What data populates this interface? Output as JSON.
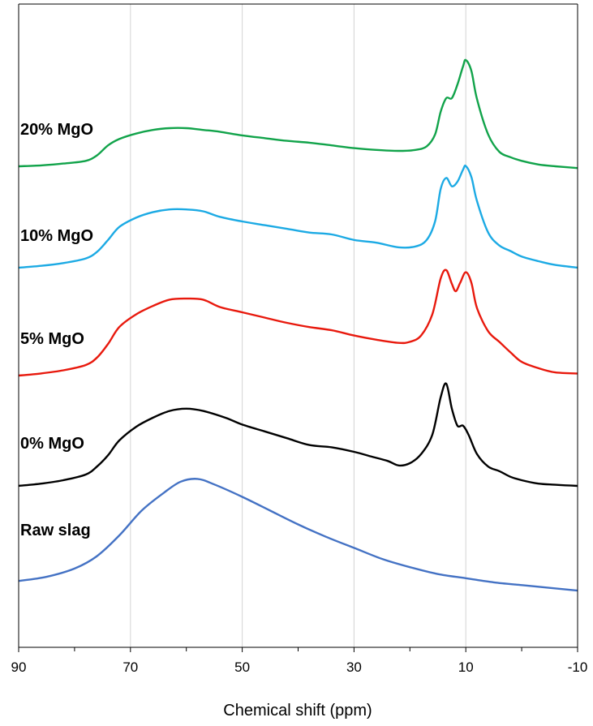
{
  "chart_data": {
    "type": "line",
    "xlabel": "Chemical shift (ppm)",
    "ylabel": "",
    "xlim": [
      90,
      -10
    ],
    "x_reversed": true,
    "xticks": [
      90,
      70,
      50,
      30,
      10,
      -10
    ],
    "x_minor_ticks": [
      80,
      60,
      40,
      20,
      0
    ],
    "grid": "vertical",
    "legend": "none",
    "y_axis_shown": false,
    "series": [
      {
        "name": "Raw slag",
        "color": "#4472C4",
        "points": [
          [
            90,
            0.04
          ],
          [
            85,
            0.07
          ],
          [
            80,
            0.13
          ],
          [
            76,
            0.22
          ],
          [
            72,
            0.37
          ],
          [
            68,
            0.55
          ],
          [
            64,
            0.68
          ],
          [
            61,
            0.76
          ],
          [
            58,
            0.78
          ],
          [
            55,
            0.74
          ],
          [
            50,
            0.65
          ],
          [
            45,
            0.55
          ],
          [
            40,
            0.45
          ],
          [
            35,
            0.36
          ],
          [
            30,
            0.28
          ],
          [
            25,
            0.2
          ],
          [
            20,
            0.14
          ],
          [
            15,
            0.09
          ],
          [
            10,
            0.06
          ],
          [
            5,
            0.03
          ],
          [
            0,
            0.01
          ],
          [
            -5,
            -0.01
          ],
          [
            -10,
            -0.03
          ]
        ]
      },
      {
        "name": "0% MgO",
        "color": "#000000",
        "points": [
          [
            90,
            0.0
          ],
          [
            86,
            0.02
          ],
          [
            82,
            0.05
          ],
          [
            78,
            0.1
          ],
          [
            76,
            0.17
          ],
          [
            74,
            0.27
          ],
          [
            72,
            0.4
          ],
          [
            69,
            0.52
          ],
          [
            66,
            0.6
          ],
          [
            63,
            0.66
          ],
          [
            60,
            0.68
          ],
          [
            57,
            0.66
          ],
          [
            53,
            0.6
          ],
          [
            50,
            0.54
          ],
          [
            46,
            0.48
          ],
          [
            42,
            0.42
          ],
          [
            38,
            0.36
          ],
          [
            34,
            0.34
          ],
          [
            30,
            0.3
          ],
          [
            27,
            0.26
          ],
          [
            24,
            0.22
          ],
          [
            22,
            0.18
          ],
          [
            20,
            0.2
          ],
          [
            18,
            0.28
          ],
          [
            16,
            0.45
          ],
          [
            14.5,
            0.78
          ],
          [
            13.5,
            0.9
          ],
          [
            12.5,
            0.68
          ],
          [
            11.5,
            0.53
          ],
          [
            10.5,
            0.53
          ],
          [
            9.5,
            0.45
          ],
          [
            8,
            0.28
          ],
          [
            6,
            0.17
          ],
          [
            4,
            0.13
          ],
          [
            2,
            0.08
          ],
          [
            0,
            0.05
          ],
          [
            -3,
            0.02
          ],
          [
            -6,
            0.01
          ],
          [
            -10,
            0.0
          ]
        ]
      },
      {
        "name": "5% MgO",
        "color": "#E8190D",
        "points": [
          [
            90,
            0.0
          ],
          [
            86,
            0.02
          ],
          [
            82,
            0.05
          ],
          [
            78,
            0.1
          ],
          [
            76,
            0.17
          ],
          [
            74,
            0.3
          ],
          [
            72,
            0.46
          ],
          [
            69,
            0.58
          ],
          [
            66,
            0.66
          ],
          [
            63,
            0.72
          ],
          [
            60,
            0.73
          ],
          [
            57,
            0.72
          ],
          [
            54,
            0.65
          ],
          [
            50,
            0.6
          ],
          [
            46,
            0.55
          ],
          [
            42,
            0.5
          ],
          [
            38,
            0.46
          ],
          [
            34,
            0.43
          ],
          [
            30,
            0.38
          ],
          [
            26,
            0.34
          ],
          [
            22,
            0.31
          ],
          [
            20,
            0.32
          ],
          [
            18,
            0.38
          ],
          [
            16,
            0.58
          ],
          [
            14.5,
            0.92
          ],
          [
            13.5,
            1.0
          ],
          [
            12.5,
            0.87
          ],
          [
            11.8,
            0.8
          ],
          [
            11,
            0.88
          ],
          [
            10,
            0.98
          ],
          [
            9,
            0.88
          ],
          [
            8,
            0.64
          ],
          [
            6,
            0.42
          ],
          [
            4,
            0.32
          ],
          [
            2,
            0.22
          ],
          [
            0,
            0.13
          ],
          [
            -3,
            0.07
          ],
          [
            -6,
            0.03
          ],
          [
            -10,
            0.02
          ]
        ]
      },
      {
        "name": "10% MgO",
        "color": "#1CAAE4",
        "points": [
          [
            90,
            0.0
          ],
          [
            86,
            0.02
          ],
          [
            82,
            0.05
          ],
          [
            78,
            0.1
          ],
          [
            76,
            0.17
          ],
          [
            74,
            0.3
          ],
          [
            72,
            0.44
          ],
          [
            69,
            0.54
          ],
          [
            66,
            0.6
          ],
          [
            63,
            0.63
          ],
          [
            60,
            0.63
          ],
          [
            57,
            0.61
          ],
          [
            54,
            0.55
          ],
          [
            50,
            0.5
          ],
          [
            46,
            0.46
          ],
          [
            42,
            0.42
          ],
          [
            38,
            0.38
          ],
          [
            34,
            0.36
          ],
          [
            30,
            0.3
          ],
          [
            26,
            0.27
          ],
          [
            22,
            0.22
          ],
          [
            19,
            0.23
          ],
          [
            17,
            0.3
          ],
          [
            15.5,
            0.5
          ],
          [
            14.5,
            0.85
          ],
          [
            13.5,
            0.97
          ],
          [
            12.5,
            0.88
          ],
          [
            11.5,
            0.93
          ],
          [
            10.5,
            1.06
          ],
          [
            10,
            1.1
          ],
          [
            9,
            0.98
          ],
          [
            8,
            0.72
          ],
          [
            6,
            0.38
          ],
          [
            4,
            0.24
          ],
          [
            2,
            0.18
          ],
          [
            0,
            0.12
          ],
          [
            -3,
            0.07
          ],
          [
            -6,
            0.03
          ],
          [
            -10,
            0.0
          ]
        ]
      },
      {
        "name": "20% MgO",
        "color": "#11A34A",
        "points": [
          [
            90,
            0.0
          ],
          [
            86,
            0.01
          ],
          [
            82,
            0.03
          ],
          [
            78,
            0.06
          ],
          [
            76,
            0.12
          ],
          [
            74,
            0.23
          ],
          [
            72,
            0.3
          ],
          [
            69,
            0.36
          ],
          [
            66,
            0.4
          ],
          [
            63,
            0.42
          ],
          [
            60,
            0.42
          ],
          [
            57,
            0.4
          ],
          [
            54,
            0.38
          ],
          [
            50,
            0.34
          ],
          [
            46,
            0.31
          ],
          [
            42,
            0.28
          ],
          [
            38,
            0.26
          ],
          [
            34,
            0.23
          ],
          [
            30,
            0.2
          ],
          [
            26,
            0.18
          ],
          [
            22,
            0.17
          ],
          [
            19,
            0.18
          ],
          [
            17,
            0.22
          ],
          [
            15.5,
            0.35
          ],
          [
            14.5,
            0.6
          ],
          [
            13.5,
            0.75
          ],
          [
            12.5,
            0.75
          ],
          [
            11.5,
            0.9
          ],
          [
            10.5,
            1.1
          ],
          [
            10,
            1.17
          ],
          [
            9,
            1.05
          ],
          [
            8,
            0.74
          ],
          [
            6,
            0.35
          ],
          [
            4,
            0.16
          ],
          [
            2,
            0.1
          ],
          [
            0,
            0.06
          ],
          [
            -3,
            0.02
          ],
          [
            -6,
            0.0
          ],
          [
            -10,
            -0.02
          ]
        ]
      }
    ]
  }
}
